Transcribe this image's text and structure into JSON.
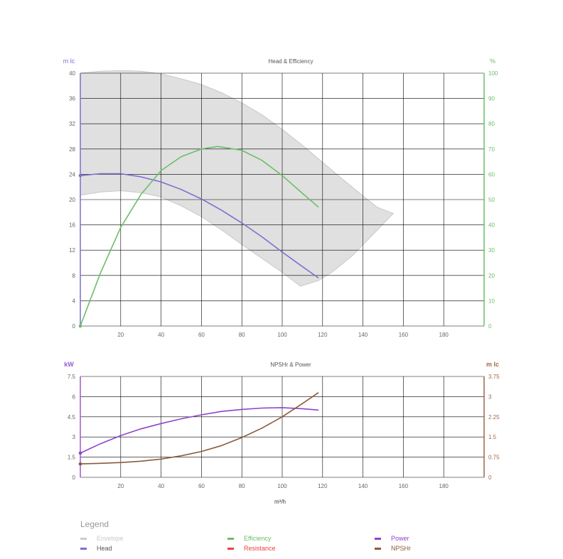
{
  "chart_data": [
    {
      "type": "line",
      "title": "Head & Efficiency",
      "xlabel": "",
      "ylabel": "m lc",
      "y2label": "%",
      "xlim": [
        0,
        200
      ],
      "ylim": [
        0,
        40
      ],
      "y2lim": [
        0,
        100
      ],
      "x_ticks": [
        "20",
        "40",
        "60",
        "80",
        "100",
        "120",
        "140",
        "160",
        "180"
      ],
      "y_ticks": [
        "0",
        "4",
        "8",
        "12",
        "16",
        "20",
        "24",
        "28",
        "32",
        "36",
        "40"
      ],
      "y2_ticks": [
        "0",
        "10",
        "20",
        "30",
        "40",
        "50",
        "60",
        "70",
        "80",
        "90",
        "100"
      ],
      "grid": true,
      "envelope": {
        "name": "Envelope",
        "upper": [
          [
            0,
            40
          ],
          [
            10,
            40.3
          ],
          [
            20,
            40.4
          ],
          [
            30,
            40.3
          ],
          [
            40,
            39.9
          ],
          [
            50,
            39.1
          ],
          [
            60,
            38.2
          ],
          [
            70,
            36.9
          ],
          [
            80,
            35.3
          ],
          [
            90,
            33.4
          ],
          [
            100,
            31.1
          ],
          [
            110,
            28.6
          ],
          [
            120,
            25.9
          ],
          [
            130,
            23.2
          ],
          [
            140,
            20.6
          ],
          [
            147,
            18.8
          ],
          [
            155,
            17.8
          ]
        ],
        "lower": [
          [
            155,
            17.8
          ],
          [
            145,
            14.5
          ],
          [
            135,
            11.2
          ],
          [
            125,
            8.6
          ],
          [
            118,
            7.2
          ],
          [
            109,
            6.3
          ],
          [
            100,
            8.5
          ],
          [
            90,
            10.7
          ],
          [
            80,
            12.9
          ],
          [
            70,
            15.2
          ],
          [
            60,
            17.3
          ],
          [
            50,
            19.0
          ],
          [
            40,
            20.4
          ],
          [
            30,
            21.1
          ],
          [
            20,
            21.4
          ],
          [
            10,
            21.2
          ],
          [
            0,
            20.7
          ]
        ]
      },
      "series": [
        {
          "name": "Head",
          "axis": "left",
          "points": [
            [
              0,
              23.8
            ],
            [
              10,
              24.1
            ],
            [
              20,
              24.1
            ],
            [
              30,
              23.6
            ],
            [
              40,
              22.8
            ],
            [
              50,
              21.6
            ],
            [
              60,
              20.1
            ],
            [
              70,
              18.3
            ],
            [
              80,
              16.3
            ],
            [
              90,
              14.1
            ],
            [
              100,
              11.7
            ],
            [
              110,
              9.4
            ],
            [
              118,
              7.6
            ]
          ]
        },
        {
          "name": "Efficiency",
          "axis": "right",
          "points": [
            [
              0,
              0
            ],
            [
              10,
              21
            ],
            [
              20,
              39
            ],
            [
              30,
              52
            ],
            [
              40,
              61.5
            ],
            [
              50,
              67
            ],
            [
              60,
              70
            ],
            [
              68,
              71
            ],
            [
              80,
              69.5
            ],
            [
              90,
              65.5
            ],
            [
              100,
              59.5
            ],
            [
              110,
              52.5
            ],
            [
              118,
              47
            ]
          ]
        }
      ]
    },
    {
      "type": "line",
      "title": "NPSHr & Power",
      "xlabel": "m³/h",
      "ylabel": "kW",
      "y2label": "m lc",
      "xlim": [
        0,
        200
      ],
      "ylim": [
        0,
        7.5
      ],
      "y2lim": [
        0,
        3.75
      ],
      "x_ticks": [
        "20",
        "40",
        "60",
        "80",
        "100",
        "120",
        "140",
        "160",
        "180"
      ],
      "y_ticks": [
        "0",
        "1.5",
        "3",
        "4.5",
        "6",
        "7.5"
      ],
      "y2_ticks": [
        "0",
        "0.75",
        "1.5",
        "2.25",
        "3",
        "3.75"
      ],
      "grid": true,
      "series": [
        {
          "name": "Power",
          "axis": "left",
          "points": [
            [
              0,
              1.8
            ],
            [
              10,
              2.5
            ],
            [
              20,
              3.1
            ],
            [
              30,
              3.6
            ],
            [
              40,
              4.0
            ],
            [
              50,
              4.35
            ],
            [
              60,
              4.65
            ],
            [
              70,
              4.9
            ],
            [
              80,
              5.05
            ],
            [
              90,
              5.15
            ],
            [
              100,
              5.18
            ],
            [
              110,
              5.1
            ],
            [
              118,
              5.0
            ]
          ]
        },
        {
          "name": "NPSHr",
          "axis": "right",
          "points": [
            [
              0,
              0.5
            ],
            [
              10,
              0.52
            ],
            [
              20,
              0.55
            ],
            [
              30,
              0.6
            ],
            [
              40,
              0.68
            ],
            [
              50,
              0.8
            ],
            [
              60,
              0.96
            ],
            [
              70,
              1.18
            ],
            [
              80,
              1.48
            ],
            [
              90,
              1.83
            ],
            [
              100,
              2.25
            ],
            [
              110,
              2.74
            ],
            [
              118,
              3.15
            ]
          ]
        }
      ]
    }
  ],
  "legend": {
    "title": "Legend",
    "items": [
      {
        "label": "Envelope",
        "color": "#cccccc"
      },
      {
        "label": "Head",
        "color": "#7b6fce"
      },
      {
        "label": "Efficiency",
        "color": "#6abf69"
      },
      {
        "label": "Resistance",
        "color": "#e8423e"
      },
      {
        "label": "Power",
        "color": "#8e44c9"
      },
      {
        "label": "NPSHr",
        "color": "#8b5a3c"
      }
    ]
  },
  "colors": {
    "head_axis": "#7b6fce",
    "efficiency_axis": "#6abf69",
    "power_axis": "#9b59d0",
    "npshr_axis": "#a0674b",
    "envelope_fill": "#e0e0e0",
    "envelope_stroke": "#c8c8c8",
    "grid": "#000000"
  }
}
